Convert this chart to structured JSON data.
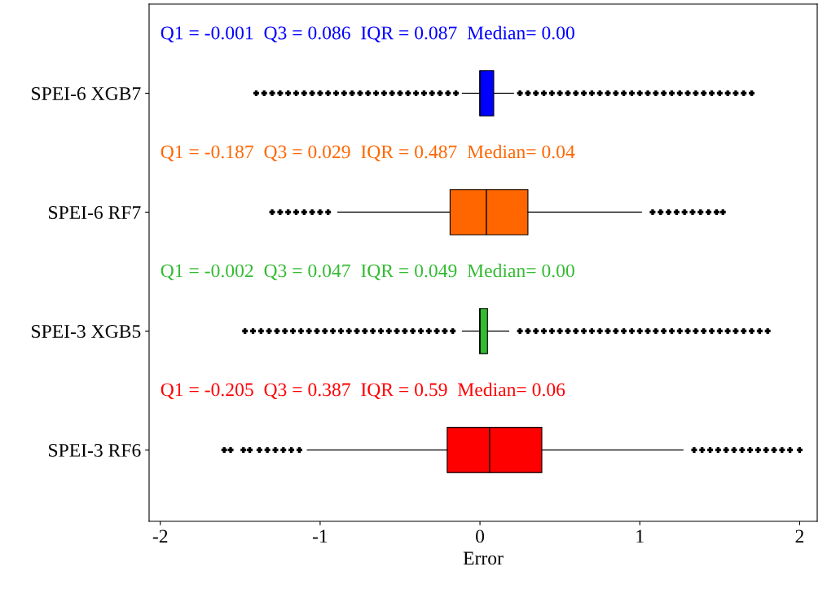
{
  "chart_data": {
    "type": "box",
    "orientation": "horizontal",
    "xlabel": "Error",
    "categories": [
      "SPEI-6 XGB7",
      "SPEI-6 RF7",
      "SPEI-3 XGB5",
      "SPEI-3 RF6"
    ],
    "colors": [
      "#0000ff",
      "#ff6600",
      "#33bb33",
      "#ff0000"
    ],
    "boxes": [
      {
        "low": -0.11,
        "q1": -0.001,
        "median": 0.0,
        "q3": 0.086,
        "high": 0.21,
        "outliers": [
          -1.4,
          -1.35,
          -1.3,
          -1.25,
          -1.2,
          -1.15,
          -1.1,
          -1.05,
          -1.0,
          -0.95,
          -0.9,
          -0.85,
          -0.8,
          -0.75,
          -0.7,
          -0.65,
          -0.6,
          -0.55,
          -0.5,
          -0.45,
          -0.4,
          -0.35,
          -0.3,
          -0.25,
          -0.2,
          -0.15,
          0.25,
          0.3,
          0.35,
          0.4,
          0.45,
          0.5,
          0.55,
          0.6,
          0.65,
          0.7,
          0.75,
          0.8,
          0.85,
          0.9,
          0.95,
          1.0,
          1.05,
          1.1,
          1.15,
          1.2,
          1.25,
          1.3,
          1.35,
          1.4,
          1.45,
          1.5,
          1.55,
          1.6,
          1.65,
          1.7
        ]
      },
      {
        "low": -0.89,
        "q1": -0.187,
        "median": 0.04,
        "q3": 0.3,
        "high": 1.01,
        "outliers": [
          -1.3,
          -1.25,
          -1.2,
          -1.15,
          -1.1,
          -1.05,
          -1.0,
          -0.95,
          1.08,
          1.13,
          1.18,
          1.23,
          1.28,
          1.33,
          1.38,
          1.43,
          1.48,
          1.52
        ]
      },
      {
        "low": -0.11,
        "q1": -0.002,
        "median": 0.0,
        "q3": 0.047,
        "high": 0.18,
        "outliers": [
          -1.47,
          -1.42,
          -1.37,
          -1.32,
          -1.27,
          -1.22,
          -1.17,
          -1.12,
          -1.07,
          -1.02,
          -0.97,
          -0.92,
          -0.87,
          -0.82,
          -0.77,
          -0.72,
          -0.67,
          -0.62,
          -0.57,
          -0.52,
          -0.47,
          -0.42,
          -0.37,
          -0.32,
          -0.27,
          -0.22,
          -0.17,
          0.25,
          0.3,
          0.35,
          0.4,
          0.45,
          0.5,
          0.55,
          0.6,
          0.65,
          0.7,
          0.75,
          0.8,
          0.85,
          0.9,
          0.95,
          1.0,
          1.05,
          1.1,
          1.15,
          1.2,
          1.25,
          1.3,
          1.35,
          1.4,
          1.45,
          1.5,
          1.55,
          1.6,
          1.65,
          1.7,
          1.75,
          1.8
        ]
      },
      {
        "low": -1.08,
        "q1": -0.205,
        "median": 0.06,
        "q3": 0.387,
        "high": 1.27,
        "outliers": [
          -1.6,
          -1.56,
          -1.48,
          -1.44,
          -1.38,
          -1.33,
          -1.28,
          -1.23,
          -1.18,
          -1.13,
          1.34,
          1.39,
          1.44,
          1.49,
          1.54,
          1.59,
          1.64,
          1.69,
          1.74,
          1.79,
          1.84,
          1.89,
          1.94,
          2.0
        ]
      }
    ],
    "annotations": [
      "Q1 = -0.001  Q3 = 0.086  IQR = 0.087  Median= 0.00",
      "Q1 = -0.187  Q3 = 0.029  IQR = 0.487  Median= 0.04",
      "Q1 = -0.002  Q3 = 0.047  IQR = 0.049  Median= 0.00",
      "Q1 = -0.205  Q3 = 0.387  IQR = 0.59  Median= 0.06"
    ],
    "xlim": [
      -2.07,
      2.11
    ],
    "xticks": [
      -2,
      -1,
      0,
      1,
      2
    ],
    "grid": false
  }
}
